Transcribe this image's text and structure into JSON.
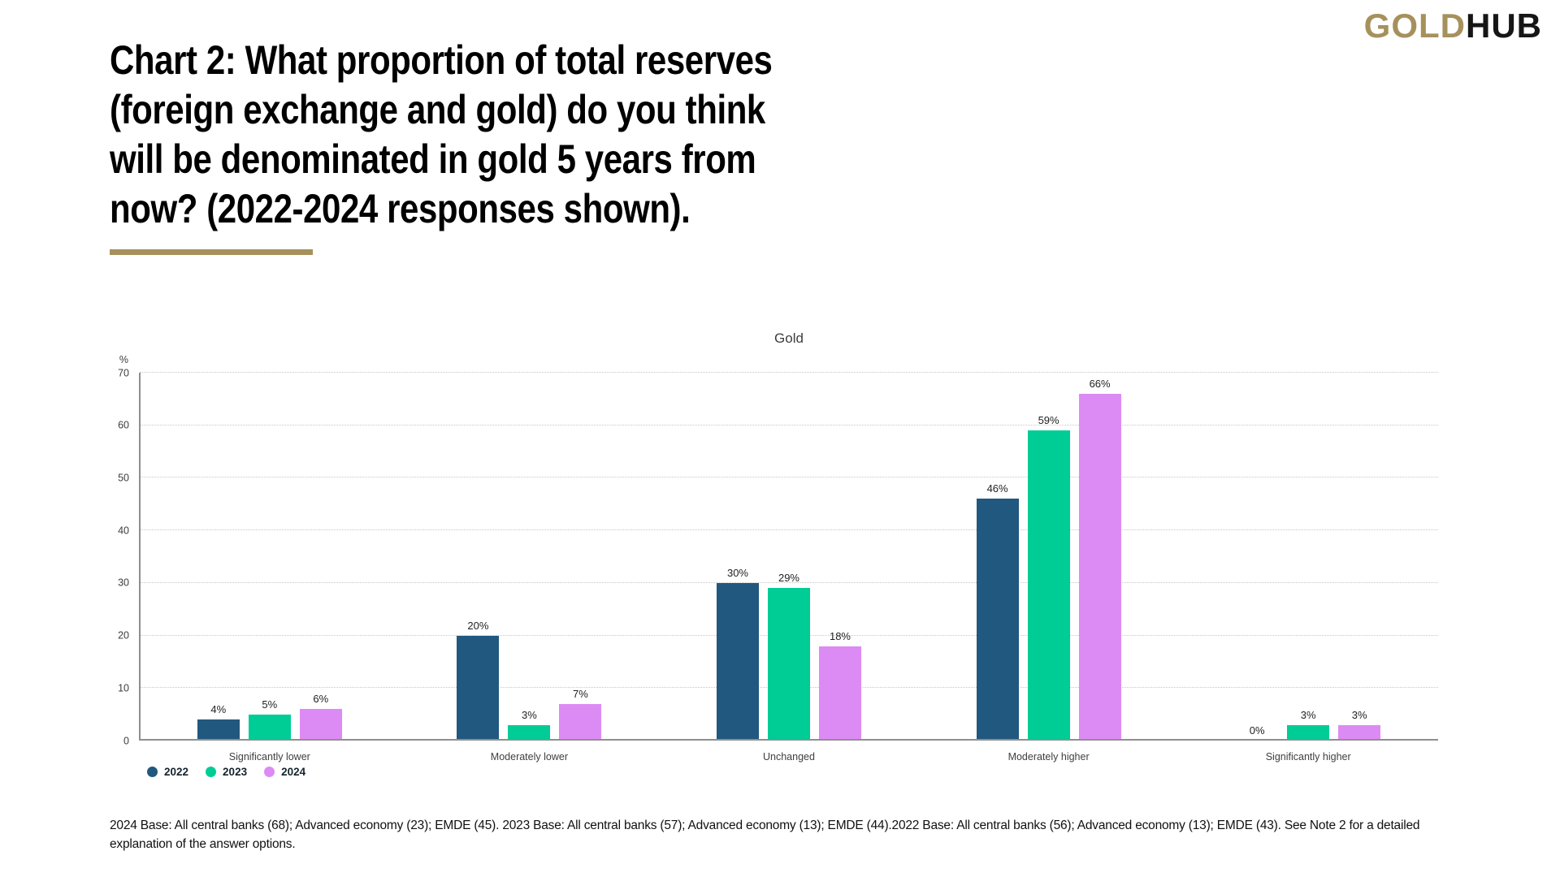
{
  "logo": {
    "gold": "GOLD",
    "hub": "HUB"
  },
  "header": {
    "title_lines": [
      "Chart 2: What proportion of total reserves",
      "(foreign exchange and gold) do you think",
      "will be denominated in gold 5 years from",
      "now? (2022-2024 responses shown)."
    ]
  },
  "chart": {
    "subtitle": "Gold",
    "y_axis_unit": "%",
    "y_ticks": [
      70,
      60,
      50,
      40,
      30,
      20,
      10,
      0
    ]
  },
  "chart_data": {
    "type": "bar",
    "title": "Gold",
    "categories": [
      "Significantly lower",
      "Moderately lower",
      "Unchanged",
      "Moderately higher",
      "Significantly higher"
    ],
    "series": [
      {
        "name": "2022",
        "color": "#21587F",
        "values": [
          4,
          20,
          30,
          46,
          0
        ]
      },
      {
        "name": "2023",
        "color": "#00CD96",
        "values": [
          5,
          3,
          29,
          59,
          3
        ]
      },
      {
        "name": "2024",
        "color": "#DD8BF4",
        "values": [
          6,
          7,
          18,
          66,
          3
        ]
      }
    ],
    "xlabel": "",
    "ylabel": "%",
    "ylim": [
      0,
      70
    ],
    "grid": "horizontal dotted lines every 10",
    "legend_position": "bottom-left",
    "value_label_format": "{value}%"
  },
  "footer": {
    "note": "2024 Base: All central banks (68); Advanced economy (23); EMDE (45). 2023 Base: All central banks (57); Advanced economy (13); EMDE (44).2022 Base: All central banks (56); Advanced economy (13); EMDE (43). See Note 2 for a detailed explanation of the answer options."
  },
  "colors": {
    "accent_gold": "#A6915C",
    "bar_2022": "#21587F",
    "bar_2023": "#00CD96",
    "bar_2024": "#DD8BF4"
  }
}
